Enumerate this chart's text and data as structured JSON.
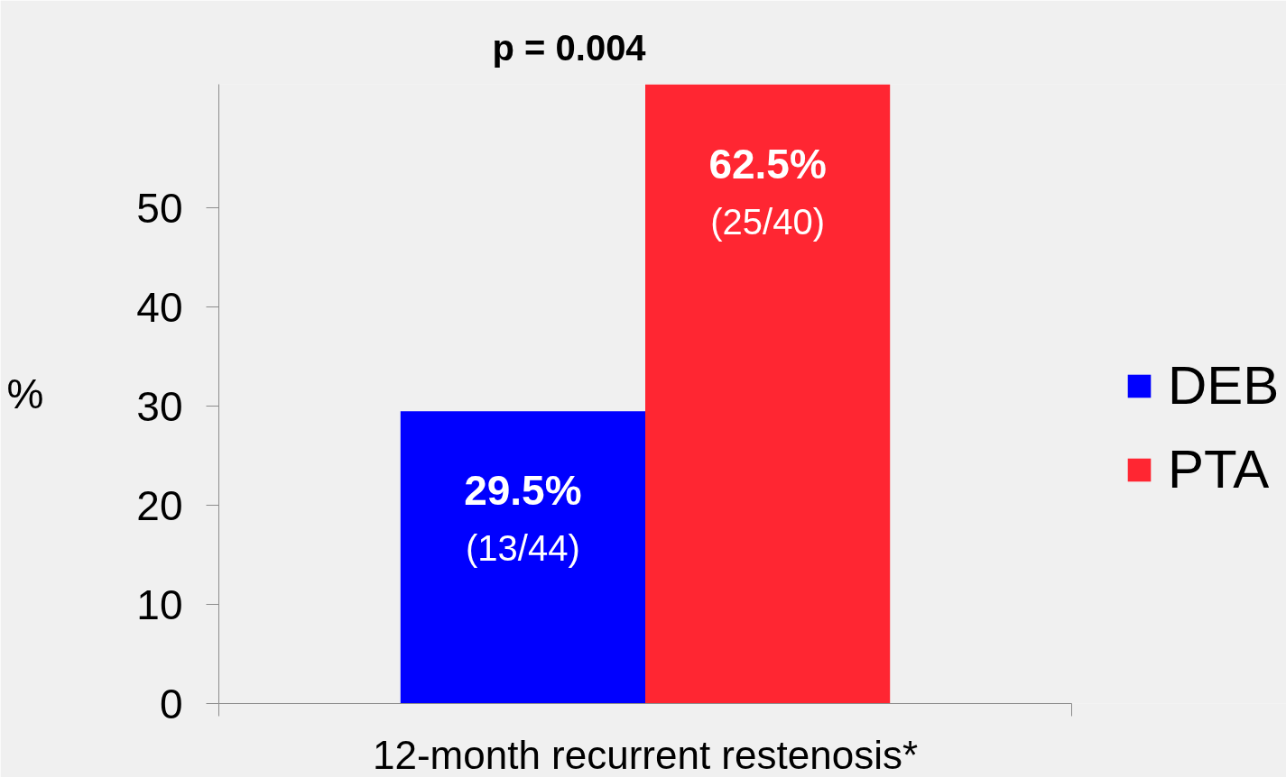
{
  "chart_data": {
    "type": "bar",
    "title": "p = 0.004",
    "ylabel": "%",
    "categories": [
      "12-month recurrent restenosis*"
    ],
    "series": [
      {
        "name": "DEB",
        "color": "#0000ff",
        "values": [
          29.5
        ],
        "value_labels": [
          "29.5%\n(13/44)"
        ]
      },
      {
        "name": "PTA",
        "color": "#ff2632",
        "values": [
          62.5
        ],
        "value_labels": [
          "62.5%\n(25/40)"
        ]
      }
    ],
    "ylim": [
      0,
      62.5
    ],
    "yticks": [
      0,
      10,
      20,
      30,
      40,
      50
    ],
    "grid": false,
    "legend": "right"
  }
}
